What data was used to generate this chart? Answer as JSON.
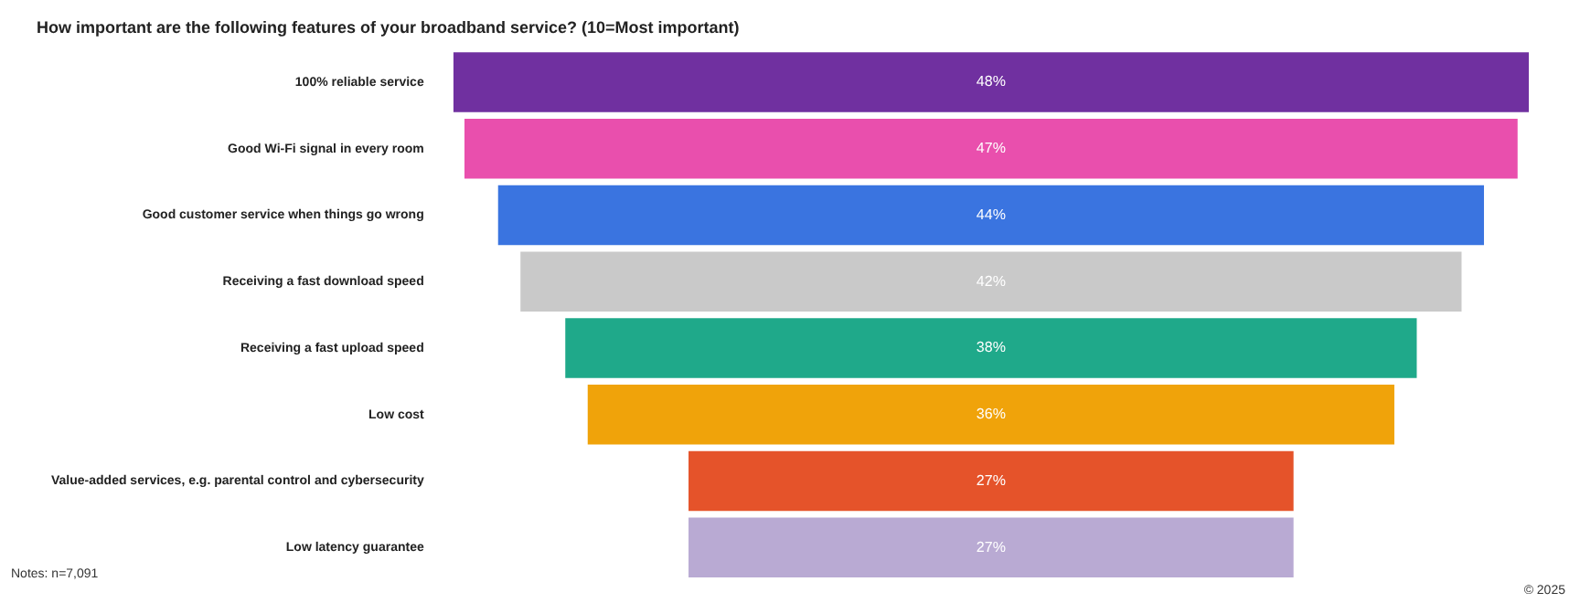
{
  "chart_data": {
    "type": "other",
    "title": "How important are the following features of your broadband service? (10=Most important)",
    "categories": [
      "100% reliable service",
      "Good Wi-Fi signal in every room",
      "Good customer service when things go wrong",
      "Receiving a fast download speed",
      "Receiving a fast upload speed",
      "Low cost",
      "Value-added services, e.g. parental control and cybersecurity",
      "Low latency guarantee"
    ],
    "values": [
      48,
      47,
      44,
      42,
      38,
      36,
      27,
      27
    ],
    "value_labels": [
      "48%",
      "47%",
      "44%",
      "42%",
      "38%",
      "36%",
      "27%",
      "27%"
    ],
    "colors": [
      "#7030a0",
      "#e94fad",
      "#3a74e0",
      "#c9c9c9",
      "#1fa98a",
      "#f0a30a",
      "#e5532a",
      "#b9aad3"
    ],
    "annotations": [
      "Notes: n=7,091",
      "© 2025"
    ]
  }
}
